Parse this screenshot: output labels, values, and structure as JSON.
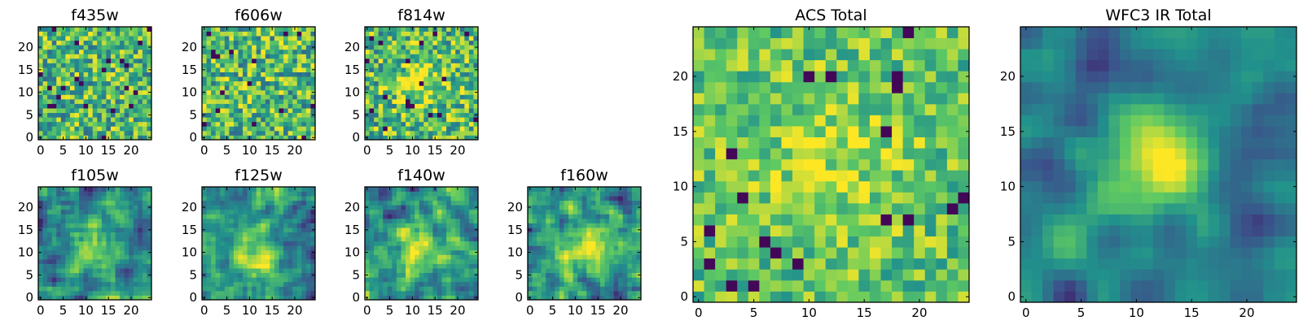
{
  "chart_data": {
    "type": "heatmap",
    "figure": "multi-panel image cutouts",
    "colormap": "viridis",
    "colormap_stops": [
      "#440154",
      "#3b528b",
      "#21918c",
      "#5ec962",
      "#fde725"
    ],
    "grid_size": 25,
    "panels": [
      {
        "id": "f435w",
        "title": "f435w",
        "xlim": [
          0,
          24
        ],
        "ylim": [
          0,
          24
        ],
        "xticks": [
          0,
          5,
          10,
          15,
          20
        ],
        "yticks": [
          0,
          5,
          10,
          15,
          20
        ],
        "texture": "noise",
        "blob": null
      },
      {
        "id": "f606w",
        "title": "f606w",
        "xlim": [
          0,
          24
        ],
        "ylim": [
          0,
          24
        ],
        "xticks": [
          0,
          5,
          10,
          15,
          20
        ],
        "yticks": [
          0,
          5,
          10,
          15,
          20
        ],
        "texture": "noise",
        "blob": null
      },
      {
        "id": "f814w",
        "title": "f814w",
        "xlim": [
          0,
          24
        ],
        "ylim": [
          0,
          24
        ],
        "xticks": [
          0,
          5,
          10,
          15,
          20
        ],
        "yticks": [
          0,
          5,
          10,
          15,
          20
        ],
        "texture": "noise",
        "blob": {
          "x": 12,
          "y": 12,
          "sigma": 4,
          "amp": 0.25
        }
      },
      {
        "id": "f105w",
        "title": "f105w",
        "xlim": [
          0,
          24
        ],
        "ylim": [
          0,
          24
        ],
        "xticks": [
          0,
          5,
          10,
          15,
          20
        ],
        "yticks": [
          0,
          5,
          10,
          15,
          20
        ],
        "texture": "smooth",
        "blob": {
          "x": 12,
          "y": 11,
          "sigma": 4,
          "amp": 0.35
        }
      },
      {
        "id": "f125w",
        "title": "f125w",
        "xlim": [
          0,
          24
        ],
        "ylim": [
          0,
          24
        ],
        "xticks": [
          0,
          5,
          10,
          15,
          20
        ],
        "yticks": [
          0,
          5,
          10,
          15,
          20
        ],
        "texture": "smooth",
        "blob": {
          "x": 11,
          "y": 11,
          "sigma": 4,
          "amp": 0.35
        }
      },
      {
        "id": "f140w",
        "title": "f140w",
        "xlim": [
          0,
          24
        ],
        "ylim": [
          0,
          24
        ],
        "xticks": [
          0,
          5,
          10,
          15,
          20
        ],
        "yticks": [
          0,
          5,
          10,
          15,
          20
        ],
        "texture": "smooth",
        "blob": {
          "x": 12,
          "y": 11,
          "sigma": 4,
          "amp": 0.3
        }
      },
      {
        "id": "f160w",
        "title": "f160w",
        "xlim": [
          0,
          24
        ],
        "ylim": [
          0,
          24
        ],
        "xticks": [
          0,
          5,
          10,
          15,
          20
        ],
        "yticks": [
          0,
          5,
          10,
          15,
          20
        ],
        "texture": "smooth",
        "blob": {
          "x": 12,
          "y": 12,
          "sigma": 4,
          "amp": 0.35
        }
      },
      {
        "id": "acs-total",
        "title": "ACS Total",
        "xlim": [
          0,
          24
        ],
        "ylim": [
          0,
          24
        ],
        "xticks": [
          0,
          5,
          10,
          15,
          20
        ],
        "yticks": [
          0,
          5,
          10,
          15,
          20
        ],
        "texture": "noise-bright",
        "blob": {
          "x": 12,
          "y": 12,
          "sigma": 5,
          "amp": 0.15
        }
      },
      {
        "id": "wfc3-ir-total",
        "title": "WFC3 IR Total",
        "xlim": [
          0,
          24
        ],
        "ylim": [
          0,
          24
        ],
        "xticks": [
          0,
          5,
          10,
          15,
          20
        ],
        "yticks": [
          0,
          5,
          10,
          15,
          20
        ],
        "texture": "smooth-dark",
        "blob": {
          "x": 12,
          "y": 12,
          "sigma": 3.5,
          "amp": 0.65
        }
      }
    ]
  }
}
